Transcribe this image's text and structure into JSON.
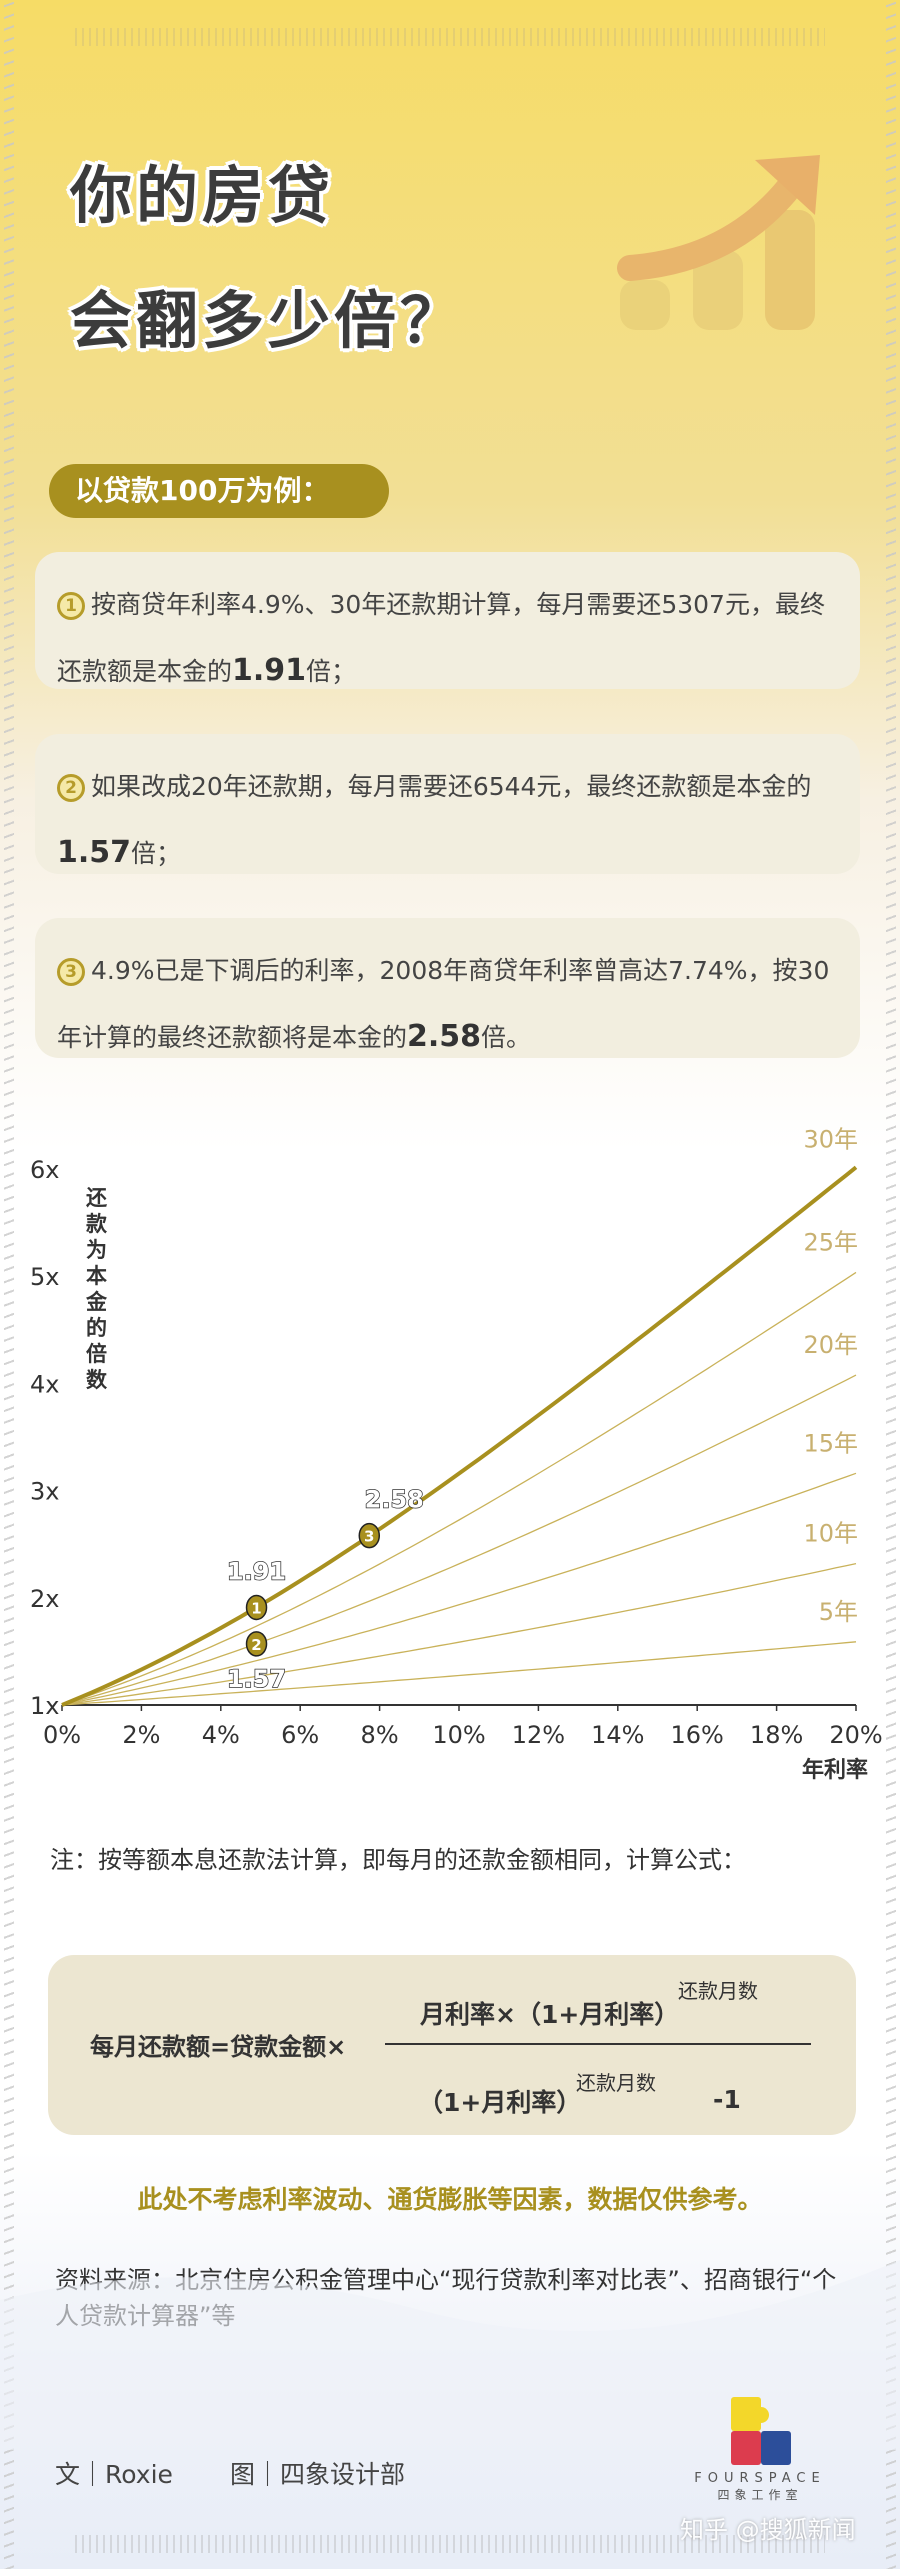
{
  "header": {
    "title_line1": "你的房贷",
    "title_line2": "会翻多少倍？",
    "pill": "以贷款100万为例："
  },
  "cards": [
    {
      "num": "1",
      "text": "按商贷年利率4.9%、30年还款期计算，每月需要还5307元，最终还款额是本金的",
      "bold": "1.91",
      "tail": "倍；"
    },
    {
      "num": "2",
      "text": "如果改成20年还款期，每月需要还6544元，最终还款额是本金的",
      "bold": "1.57",
      "tail": "倍；"
    },
    {
      "num": "3",
      "text": "4.9%已是下调后的利率，2008年商贷年利率曾高达7.74%，按30年计算的最终还款额将是本金的",
      "bold": "2.58",
      "tail": "倍。"
    }
  ],
  "chart_data": {
    "type": "line",
    "ylabel": "还款为本金的倍数",
    "xlabel": "年利率",
    "xlim": [
      0,
      20
    ],
    "ylim": [
      1,
      6
    ],
    "x_ticks": [
      "0%",
      "2%",
      "4%",
      "6%",
      "8%",
      "10%",
      "12%",
      "14%",
      "16%",
      "18%",
      "20%"
    ],
    "y_ticks": [
      "1x",
      "2x",
      "3x",
      "4x",
      "5x",
      "6x"
    ],
    "series": [
      {
        "name": "5年",
        "years": 5
      },
      {
        "name": "10年",
        "years": 10
      },
      {
        "name": "15年",
        "years": 15
      },
      {
        "name": "20年",
        "years": 20
      },
      {
        "name": "25年",
        "years": 25
      },
      {
        "name": "30年",
        "years": 30
      }
    ],
    "annotations": [
      {
        "num": "1",
        "x": 4.9,
        "y": 1.91,
        "label": "1.91"
      },
      {
        "num": "2",
        "x": 4.9,
        "y": 1.57,
        "label": "1.57"
      },
      {
        "num": "3",
        "x": 7.74,
        "y": 2.58,
        "label": "2.58"
      }
    ],
    "colors": {
      "main": "#a8901f",
      "thin": "#c9b25a",
      "label": "#c8b070"
    },
    "grid": false
  },
  "note": "注：按等额本息还款法计算，即每月的还款金额相同，计算公式：",
  "formula": {
    "lhs": "每月还款额=贷款金额×",
    "numerator": "月利率×（1+月利率）",
    "exp": "还款月数",
    "denominator": "（1+月利率）",
    "minus": "-1"
  },
  "disclaimer": "此处不考虑利率波动、通货膨胀等因素，数据仅供参考。",
  "source": "资料来源：北京住房公积金管理中心“现行贷款利率对比表”、招商银行“个人贷款计算器”等",
  "footer": {
    "author": "文｜Roxie",
    "design": "图｜四象设计部",
    "logo_en": "FOURSPACE",
    "logo_cn": "四象工作室",
    "watermark": "知乎 @搜狐新闻"
  }
}
